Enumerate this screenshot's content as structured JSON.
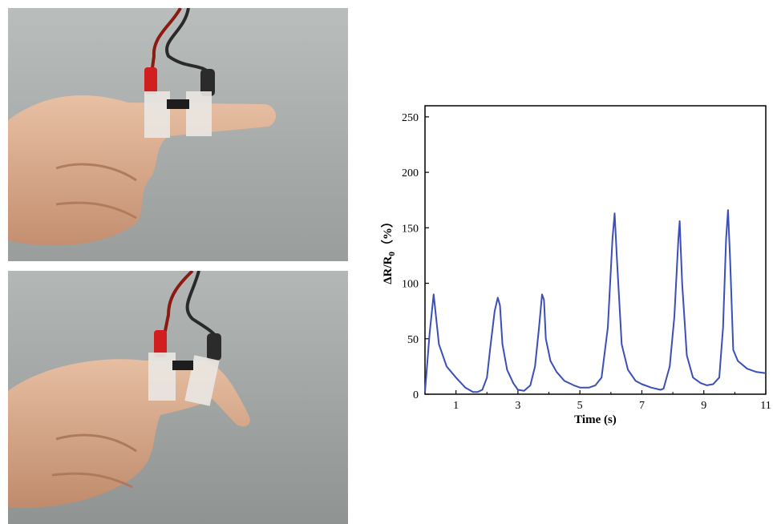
{
  "photos": [
    {
      "state": "straight"
    },
    {
      "state": "bent"
    }
  ],
  "chart_data": {
    "type": "line",
    "xlabel": "Time (s)",
    "ylabel_main": "ΔR/R",
    "ylabel_sub": "0",
    "ylabel_unit": "（%）",
    "xlim": [
      0,
      11
    ],
    "ylim": [
      0,
      260
    ],
    "xticks": [
      1,
      3,
      5,
      7,
      9,
      11
    ],
    "yticks": [
      0,
      50,
      100,
      150,
      200,
      250
    ],
    "grid": false,
    "colors": {
      "line": "#3a4fb8",
      "axis": "#000000"
    },
    "series": [
      {
        "x": [
          0,
          0.15,
          0.28,
          0.45,
          0.7,
          1.0,
          1.3,
          1.55,
          1.7,
          1.85,
          2.0,
          2.1,
          2.25,
          2.35,
          2.42,
          2.5,
          2.65,
          2.85,
          3.0,
          3.2,
          3.4,
          3.55,
          3.68,
          3.78,
          3.84,
          3.9,
          4.05,
          4.25,
          4.5,
          4.8,
          5.0,
          5.3,
          5.5,
          5.7,
          5.9,
          6.05,
          6.12,
          6.2,
          6.35,
          6.55,
          6.8,
          7.0,
          7.3,
          7.6,
          7.7,
          7.9,
          8.05,
          8.18,
          8.22,
          8.3,
          8.45,
          8.65,
          8.9,
          9.1,
          9.3,
          9.5,
          9.62,
          9.72,
          9.78,
          9.85,
          9.95,
          10.1,
          10.4,
          10.7,
          11.0
        ],
        "y": [
          2,
          55,
          90,
          45,
          25,
          15,
          6,
          2,
          2,
          4,
          15,
          40,
          75,
          87,
          80,
          45,
          22,
          10,
          4,
          3,
          8,
          25,
          60,
          90,
          85,
          50,
          30,
          20,
          12,
          8,
          6,
          6,
          8,
          15,
          60,
          140,
          163,
          120,
          45,
          22,
          12,
          9,
          6,
          4,
          5,
          25,
          70,
          140,
          156,
          100,
          35,
          15,
          10,
          8,
          9,
          15,
          60,
          140,
          166,
          120,
          40,
          30,
          23,
          20,
          19
        ]
      }
    ]
  }
}
